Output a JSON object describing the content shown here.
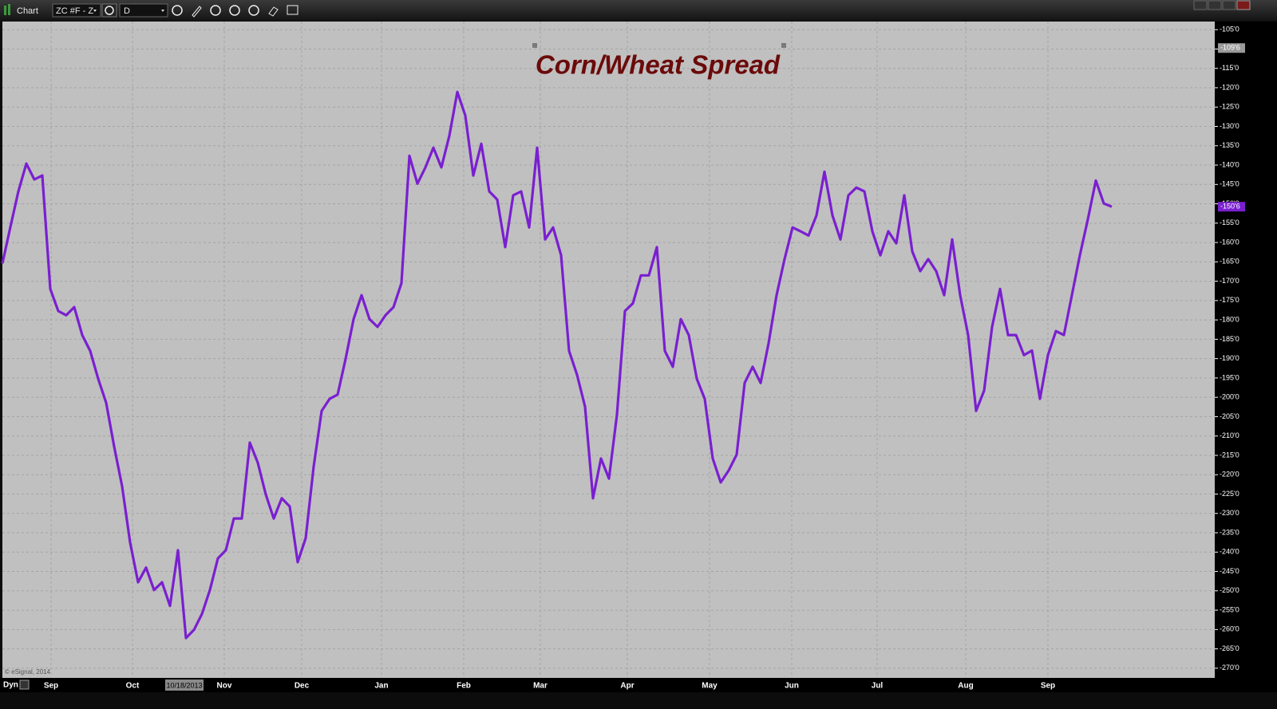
{
  "toolbar": {
    "title": "Chart",
    "symbol": "ZC #F - Z",
    "interval": "D"
  },
  "footer": {
    "mode": "Dyn",
    "copyright": "© eSignal, 2014"
  },
  "chart_data": {
    "type": "line",
    "title": "Corn/Wheat Spread",
    "color": "#7a1fd0",
    "grid": true,
    "values": [
      -165.4,
      -156,
      -146.8,
      -139.6,
      -143.7,
      -142.7,
      -172,
      -177.7,
      -178.8,
      -176.7,
      -183.9,
      -188,
      -195.2,
      -201.4,
      -212.7,
      -223,
      -237.5,
      -247.8,
      -244,
      -249.8,
      -247.8,
      -253.9,
      -239.5,
      -262.2,
      -260.1,
      -256,
      -249.8,
      -241.6,
      -239.5,
      -231.3,
      -231.3,
      -211.7,
      -216.9,
      -225.1,
      -231.3,
      -226.1,
      -228.2,
      -242.6,
      -236.4,
      -217.9,
      -203.5,
      -200.4,
      -199.3,
      -190.1,
      -179.8,
      -173.6,
      -179.8,
      -181.8,
      -178.8,
      -176.7,
      -170.5,
      -137.6,
      -144.8,
      -140.6,
      -135.5,
      -140.6,
      -132.4,
      -121.1,
      -127.2,
      -142.7,
      -134.5,
      -146.8,
      -148.9,
      -161.2,
      -147.8,
      -146.8,
      -156.1,
      -135.5,
      -159.2,
      -156.1,
      -163.3,
      -188,
      -194.2,
      -202.4,
      -226.1,
      -215.8,
      -221,
      -204.5,
      -177.7,
      -175.7,
      -168.5,
      -168.5,
      -161.2,
      -188,
      -192.1,
      -179.8,
      -183.9,
      -195.2,
      -200.4,
      -215.8,
      -222,
      -218.9,
      -214.8,
      -196.3,
      -192.1,
      -196.3,
      -186,
      -173.6,
      -164.3,
      -156.1,
      -157.1,
      -158.2,
      -153,
      -141.7,
      -153,
      -159.2,
      -147.8,
      -145.8,
      -146.8,
      -157.1,
      -163.3,
      -157.1,
      -160.2,
      -147.8,
      -162.3,
      -167.4,
      -164.3,
      -167.4,
      -173.6,
      -159.2,
      -173.6,
      -183.9,
      -203.5,
      -198.3,
      -181.8,
      -172,
      -183.9,
      -183.9,
      -189.1,
      -187.9,
      -200.4,
      -189.1,
      -182.9,
      -183.9,
      -173.6,
      -163.3,
      -154,
      -144,
      -149.9,
      -150.75
    ],
    "xlim": [
      0,
      151.9
    ],
    "xticks": [
      {
        "value": 6.1,
        "label": "Sep"
      },
      {
        "value": 16.3,
        "label": "Oct"
      },
      {
        "value": 27.8,
        "label": "Nov"
      },
      {
        "value": 37.5,
        "label": "Dec"
      },
      {
        "value": 47.5,
        "label": "Jan"
      },
      {
        "value": 57.8,
        "label": "Feb"
      },
      {
        "value": 67.4,
        "label": "Mar"
      },
      {
        "value": 78.3,
        "label": "Apr"
      },
      {
        "value": 88.6,
        "label": "May"
      },
      {
        "value": 98.9,
        "label": "Jun"
      },
      {
        "value": 109.6,
        "label": "Jul"
      },
      {
        "value": 120.7,
        "label": "Aug"
      },
      {
        "value": 131,
        "label": "Sep"
      }
    ],
    "cursor": {
      "value": 22.8,
      "label": "10/18/2013"
    },
    "ylim": [
      -272.5,
      -102.9
    ],
    "yticks": [
      {
        "value": -105,
        "label": "-105'0"
      },
      {
        "value": -110,
        "label": "-110'0"
      },
      {
        "value": -115,
        "label": "-115'0"
      },
      {
        "value": -120,
        "label": "-120'0"
      },
      {
        "value": -125,
        "label": "-125'0"
      },
      {
        "value": -130,
        "label": "-130'0"
      },
      {
        "value": -135,
        "label": "-135'0"
      },
      {
        "value": -140,
        "label": "-140'0"
      },
      {
        "value": -145,
        "label": "-145'0"
      },
      {
        "value": -150,
        "label": "-150'0"
      },
      {
        "value": -155,
        "label": "-155'0"
      },
      {
        "value": -160,
        "label": "-160'0"
      },
      {
        "value": -165,
        "label": "-165'0"
      },
      {
        "value": -170,
        "label": "-170'0"
      },
      {
        "value": -175,
        "label": "-175'0"
      },
      {
        "value": -180,
        "label": "-180'0"
      },
      {
        "value": -185,
        "label": "-185'0"
      },
      {
        "value": -190,
        "label": "-190'0"
      },
      {
        "value": -195,
        "label": "-195'0"
      },
      {
        "value": -200,
        "label": "-200'0"
      },
      {
        "value": -205,
        "label": "-205'0"
      },
      {
        "value": -210,
        "label": "-210'0"
      },
      {
        "value": -215,
        "label": "-215'0"
      },
      {
        "value": -220,
        "label": "-220'0"
      },
      {
        "value": -225,
        "label": "-225'0"
      },
      {
        "value": -230,
        "label": "-230'0"
      },
      {
        "value": -235,
        "label": "-235'0"
      },
      {
        "value": -240,
        "label": "-240'0"
      },
      {
        "value": -245,
        "label": "-245'0"
      },
      {
        "value": -250,
        "label": "-250'0"
      },
      {
        "value": -255,
        "label": "-255'0"
      },
      {
        "value": -260,
        "label": "-260'0"
      },
      {
        "value": -265,
        "label": "-265'0"
      },
      {
        "value": -270,
        "label": "-270'0"
      }
    ],
    "price_markers": [
      {
        "value": -109.75,
        "label": "-109'6",
        "color": "#9a9a9a"
      },
      {
        "value": -150.75,
        "label": "-150'6",
        "color": "#7a1fd0"
      }
    ]
  }
}
